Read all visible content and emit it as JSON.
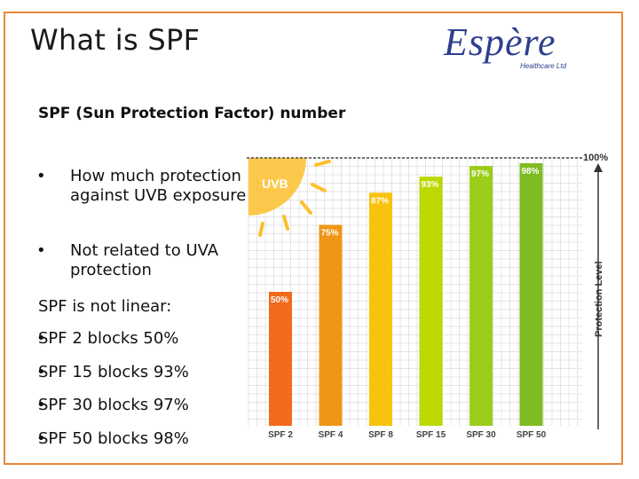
{
  "slide": {
    "title": "What is SPF",
    "logo": {
      "brand": "Espère",
      "tagline": "Healthcare Ltd"
    },
    "heading": "SPF (Sun Protection Factor) number",
    "bullets": [
      "How much protection against UVB exposure",
      "Not related to UVA protection"
    ],
    "linear_intro": "SPF is not linear:",
    "spf_points": [
      "SPF 2 blocks 50%",
      "SPF 15 blocks 93%",
      "SPF 30 blocks 97%",
      "SPF 50 blocks 98%"
    ],
    "bullet_char": "•"
  },
  "chart_data": {
    "type": "bar",
    "categories": [
      "SPF 2",
      "SPF 4",
      "SPF 8",
      "SPF 15",
      "SPF 30",
      "SPF 50"
    ],
    "values": [
      50,
      75,
      87,
      93,
      97,
      98
    ],
    "value_labels": [
      "50%",
      "75%",
      "87%",
      "93%",
      "97%",
      "98%"
    ],
    "colors": [
      "#f26a1b",
      "#ef9616",
      "#f9c20d",
      "#bcd800",
      "#9bcd1a",
      "#7fbb22"
    ],
    "ylabel": "Protection Level",
    "top_label": "100%",
    "sun_label": "UVB",
    "ylim": [
      0,
      100
    ],
    "grid": true
  }
}
